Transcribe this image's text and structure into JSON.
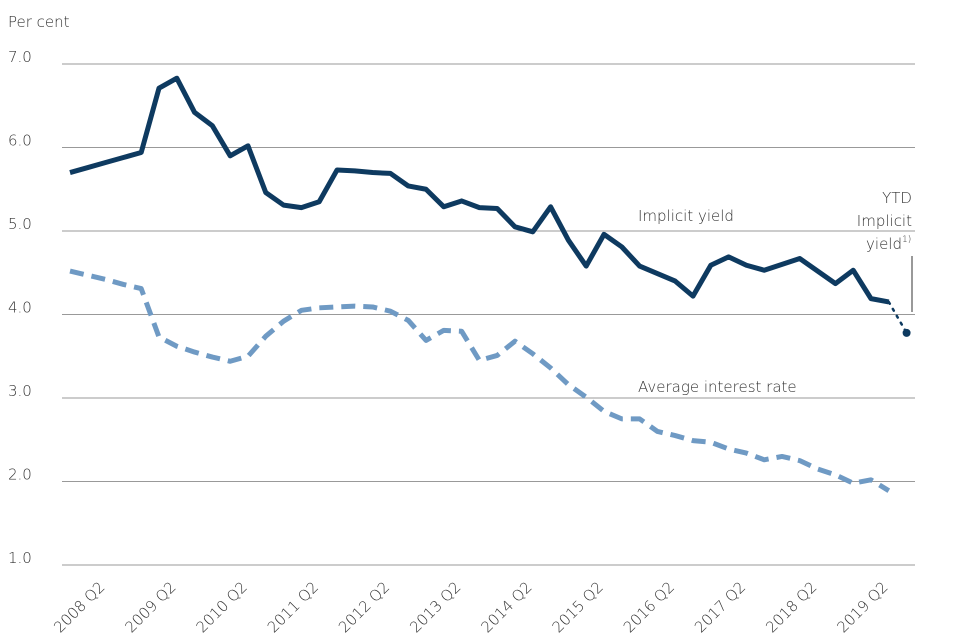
{
  "chart_data": {
    "type": "line",
    "y_label": "Per cent",
    "categories": [
      null,
      null,
      "2008 Q2",
      null,
      null,
      null,
      "2009 Q2",
      null,
      null,
      null,
      "2010 Q2",
      null,
      null,
      null,
      "2011 Q2",
      null,
      null,
      null,
      "2012 Q2",
      null,
      null,
      null,
      "2013 Q2",
      null,
      null,
      null,
      "2014 Q2",
      null,
      null,
      null,
      "2015 Q2",
      null,
      null,
      null,
      "2016 Q2",
      null,
      null,
      null,
      "2017 Q2",
      null,
      null,
      null,
      "2018 Q2",
      null,
      null,
      null,
      "2019 Q2",
      null
    ],
    "series": [
      {
        "name": "Implicit yield",
        "color": "#0e3a60",
        "style": "solid",
        "values": [
          5.7,
          5.76,
          5.82,
          5.88,
          5.94,
          6.71,
          6.83,
          6.42,
          6.26,
          5.9,
          6.02,
          5.46,
          5.31,
          5.28,
          5.35,
          5.73,
          5.72,
          5.7,
          5.69,
          5.54,
          5.5,
          5.29,
          5.36,
          5.28,
          5.27,
          5.05,
          4.99,
          5.29,
          4.89,
          4.58,
          4.96,
          4.81,
          4.58,
          4.49,
          4.4,
          4.22,
          4.59,
          4.69,
          4.59,
          4.53,
          4.6,
          4.67,
          4.52,
          4.37,
          4.53,
          4.19,
          4.15,
          null
        ]
      },
      {
        "name": "Average interest rate",
        "color": "#6f9ac4",
        "style": "dashed",
        "values": [
          4.52,
          4.47,
          4.42,
          4.36,
          4.31,
          3.73,
          3.62,
          3.55,
          3.49,
          3.44,
          3.5,
          3.74,
          3.92,
          4.05,
          4.08,
          4.09,
          4.1,
          4.09,
          4.04,
          3.93,
          3.69,
          3.81,
          3.8,
          3.45,
          3.51,
          3.68,
          3.53,
          3.36,
          3.16,
          3.01,
          2.84,
          2.75,
          2.75,
          2.6,
          2.55,
          2.49,
          2.47,
          2.39,
          2.34,
          2.26,
          2.3,
          2.25,
          2.15,
          2.08,
          1.98,
          2.02,
          1.89,
          null
        ]
      },
      {
        "color": "#0e3a60",
        "style": "dotted",
        "values": [
          null,
          null,
          null,
          null,
          null,
          null,
          null,
          null,
          null,
          null,
          null,
          null,
          null,
          null,
          null,
          null,
          null,
          null,
          null,
          null,
          null,
          null,
          null,
          null,
          null,
          null,
          null,
          null,
          null,
          null,
          null,
          null,
          null,
          null,
          null,
          null,
          null,
          null,
          null,
          null,
          null,
          null,
          null,
          null,
          null,
          null,
          4.15,
          3.78
        ]
      }
    ],
    "ytd_annotation": {
      "lines": [
        "YTD",
        "Implicit",
        "yield"
      ],
      "superscript": "1)"
    },
    "ylim": [
      1,
      7
    ],
    "yticks": [
      {
        "value": 1,
        "label": "1.0"
      },
      {
        "value": 2,
        "label": "2.0"
      },
      {
        "value": 3,
        "label": "3.0"
      },
      {
        "value": 4,
        "label": "4.0"
      },
      {
        "value": 5,
        "label": "5.0"
      },
      {
        "value": 6,
        "label": "6.0"
      },
      {
        "value": 7,
        "label": "7.0"
      }
    ],
    "grid": true
  }
}
